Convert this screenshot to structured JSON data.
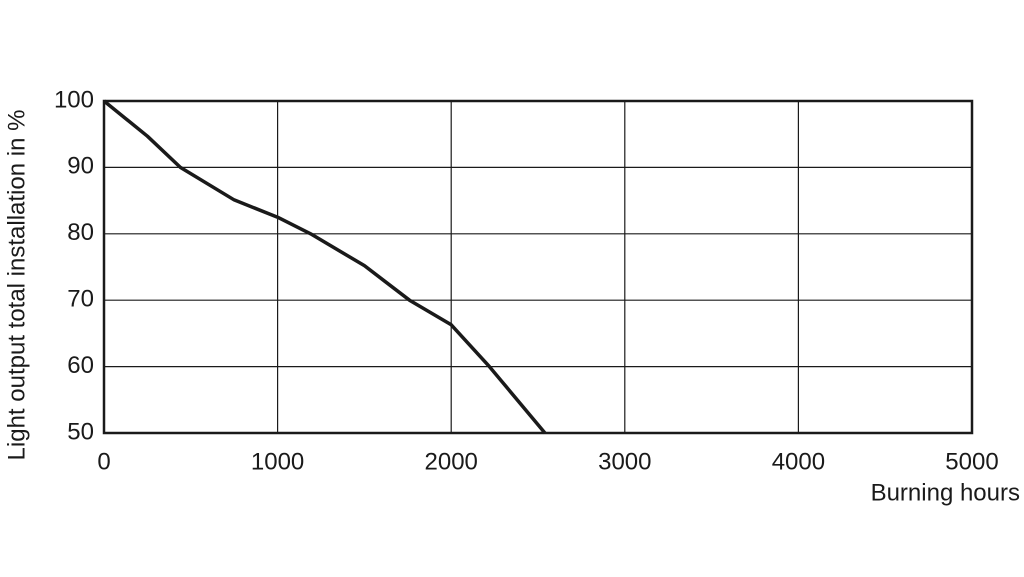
{
  "chart_data": {
    "type": "line",
    "x_label": "Burning hours",
    "y_label": "Light output total installation in %",
    "x": [
      0,
      250,
      440,
      750,
      1000,
      1190,
      1500,
      1760,
      2000,
      2220,
      2540
    ],
    "series": [
      {
        "color": "#1a1a1a",
        "values": [
          100,
          94.7,
          90,
          85.1,
          82.5,
          80,
          75.2,
          70,
          66.3,
          60,
          50
        ]
      }
    ],
    "xlim": [
      0,
      5000
    ],
    "xticks": [
      0,
      1000,
      2000,
      3000,
      4000,
      5000
    ],
    "ylim": [
      50,
      100
    ],
    "yticks": [
      50,
      60,
      70,
      80,
      90,
      100
    ],
    "grid": true
  }
}
